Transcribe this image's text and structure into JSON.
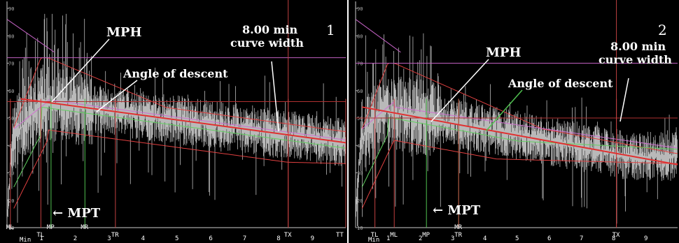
{
  "panels": [
    {
      "number": "1",
      "ylim": [
        10,
        90
      ],
      "xlim": [
        0,
        10
      ],
      "y_ticks": [
        "90",
        "80",
        "70",
        "60",
        "50",
        "40",
        "30",
        "20",
        "10"
      ],
      "x_ticks": [
        "1",
        "2",
        "3",
        "4",
        "5",
        "6",
        "7",
        "8",
        "9"
      ],
      "x_first_label": "Min",
      "markers": [
        {
          "label": "ML",
          "x": 0.1,
          "row": 1
        },
        {
          "label": "TL",
          "x": 1.0,
          "row": 2
        },
        {
          "label": "MP",
          "x": 1.3,
          "row": 1
        },
        {
          "label": "MR",
          "x": 2.3,
          "row": 1
        },
        {
          "label": "TR",
          "x": 3.2,
          "row": 2
        },
        {
          "label": "TX",
          "x": 8.3,
          "row": 2
        },
        {
          "label": "TT",
          "x": 10.0,
          "row": 2
        }
      ],
      "annotations": {
        "mph": "MPH",
        "angle": "Angle of descent",
        "width": [
          "8.00 min",
          "curve width"
        ],
        "mpt": "← MPT"
      },
      "hline_magenta": 72,
      "hline_red": 56,
      "vline_x": 8.3,
      "descent": {
        "x0": 0.4,
        "y0": 57,
        "x1": 10,
        "y1": 41
      },
      "envelope_peak": 72,
      "seed": 7
    },
    {
      "number": "2",
      "ylim": [
        10,
        90
      ],
      "xlim": [
        0,
        10
      ],
      "y_ticks": [
        "90",
        "80",
        "70",
        "60",
        "50",
        "40",
        "30",
        "20",
        "10"
      ],
      "x_ticks": [
        "1",
        "2",
        "3",
        "4",
        "5",
        "6",
        "7",
        "8",
        "9"
      ],
      "x_first_label": "Min",
      "markers": [
        {
          "label": "TL",
          "x": 0.6,
          "row": 2
        },
        {
          "label": "ML",
          "x": 1.2,
          "row": 2
        },
        {
          "label": "MP",
          "x": 2.2,
          "row": 2
        },
        {
          "label": "MR",
          "x": 3.2,
          "row": 1
        },
        {
          "label": "TR",
          "x": 3.2,
          "row": 2
        },
        {
          "label": "TX",
          "x": 8.1,
          "row": 2
        }
      ],
      "annotations": {
        "mph": "MPH",
        "angle": "Angle of descent",
        "width": [
          "8.00 min",
          "curve width"
        ],
        "mpt": "← MPT"
      },
      "hline_magenta": 70,
      "hline_red": 50,
      "vline_x": 8.1,
      "descent": {
        "x0": 0.2,
        "y0": 54,
        "x1": 10,
        "y1": 33
      },
      "envelope_peak": 70,
      "seed": 13
    }
  ],
  "chart_data": [
    {
      "type": "line",
      "title": "",
      "xlabel": "Min",
      "ylabel": "",
      "ylim": [
        10,
        90
      ],
      "xlim": [
        0,
        10
      ],
      "series": [
        {
          "values": [
            [
              0.4,
              57
            ],
            [
              10,
              41
            ]
          ]
        }
      ],
      "annotations": [
        "MPH",
        "Angle of descent",
        "8.00 min curve width",
        "MPT"
      ],
      "markers": [
        "ML",
        "TL",
        "MP",
        "MR",
        "TR",
        "TX",
        "TT"
      ]
    },
    {
      "type": "line",
      "title": "",
      "xlabel": "Min",
      "ylabel": "",
      "ylim": [
        10,
        90
      ],
      "xlim": [
        0,
        10
      ],
      "series": [
        {
          "values": [
            [
              0.2,
              54
            ],
            [
              10,
              33
            ]
          ]
        }
      ],
      "annotations": [
        "MPH",
        "Angle of descent",
        "8.00 min curve width",
        "MPT"
      ],
      "markers": [
        "TL",
        "ML",
        "MP",
        "MR",
        "TR",
        "TX"
      ]
    }
  ]
}
